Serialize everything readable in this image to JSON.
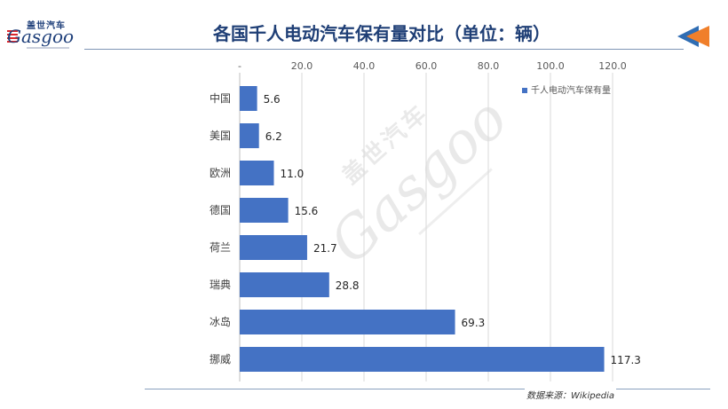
{
  "logo": {
    "cn": "盖世汽车",
    "en": "Gasgoo"
  },
  "title": "各国千人电动汽车保有量对比（单位：辆）",
  "source": "数据来源：Wikipedia",
  "colors": {
    "bar": "#4472c4",
    "title": "#1f3f76",
    "grid": "#d9d9d9"
  },
  "chart_data": {
    "type": "bar",
    "orientation": "horizontal",
    "title": "各国千人电动汽车保有量对比（单位：辆）",
    "categories": [
      "中国",
      "美国",
      "欧洲",
      "德国",
      "荷兰",
      "瑞典",
      "冰岛",
      "挪威"
    ],
    "series": [
      {
        "name": "千人电动汽车保有量",
        "values": [
          5.6,
          6.2,
          11.0,
          15.6,
          21.7,
          28.8,
          69.3,
          117.3
        ]
      }
    ],
    "value_labels": [
      "5.6",
      "6.2",
      "11.0",
      "15.6",
      "21.7",
      "28.8",
      "69.3",
      "117.3"
    ],
    "xlim": [
      0,
      120
    ],
    "x_ticks": [
      0,
      20,
      40,
      60,
      80,
      100,
      120
    ],
    "x_tick_labels": [
      "-",
      "20.0",
      "40.0",
      "60.0",
      "80.0",
      "100.0",
      "120.0"
    ],
    "x_axis_position": "top",
    "grid": true,
    "legend": "top-right"
  }
}
